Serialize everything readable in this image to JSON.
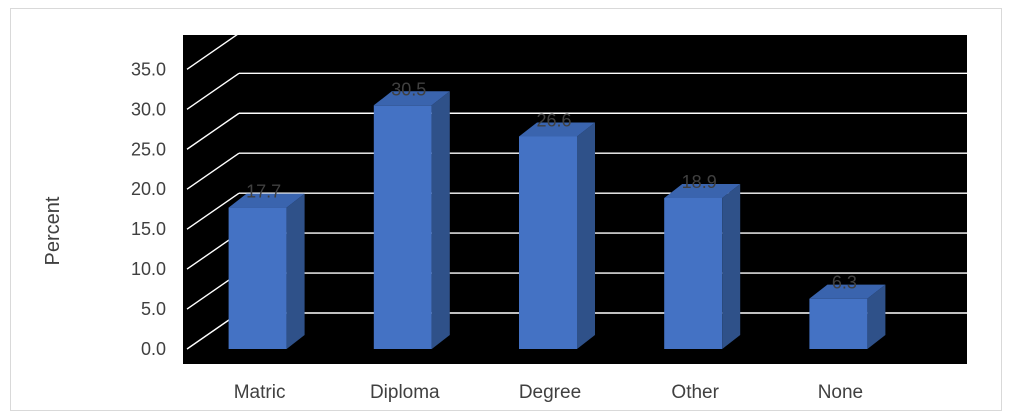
{
  "chart_data": {
    "type": "bar",
    "style": "3d-column",
    "categories": [
      "Matric",
      "Diploma",
      "Degree",
      "Other",
      "None"
    ],
    "values": [
      17.7,
      30.5,
      26.6,
      18.9,
      6.3
    ],
    "data_labels": [
      "17.7",
      "30.5",
      "26.6",
      "18.9",
      "6.3"
    ],
    "xlabel": "",
    "ylabel": "Percent",
    "ylim": [
      0,
      35
    ],
    "yticks": [
      "0.0",
      "5.0",
      "10.0",
      "15.0",
      "20.0",
      "25.0",
      "30.0",
      "35.0"
    ],
    "ytick_values": [
      0,
      5,
      10,
      15,
      20,
      25,
      30,
      35
    ],
    "grid": true,
    "legend": "none"
  },
  "colors": {
    "plot_background": "#000000",
    "bar_front": "#4472C4",
    "bar_side": "#2F5189",
    "bar_top": "#3A64AE",
    "gridline": "#ffffff",
    "text": "#404040"
  }
}
